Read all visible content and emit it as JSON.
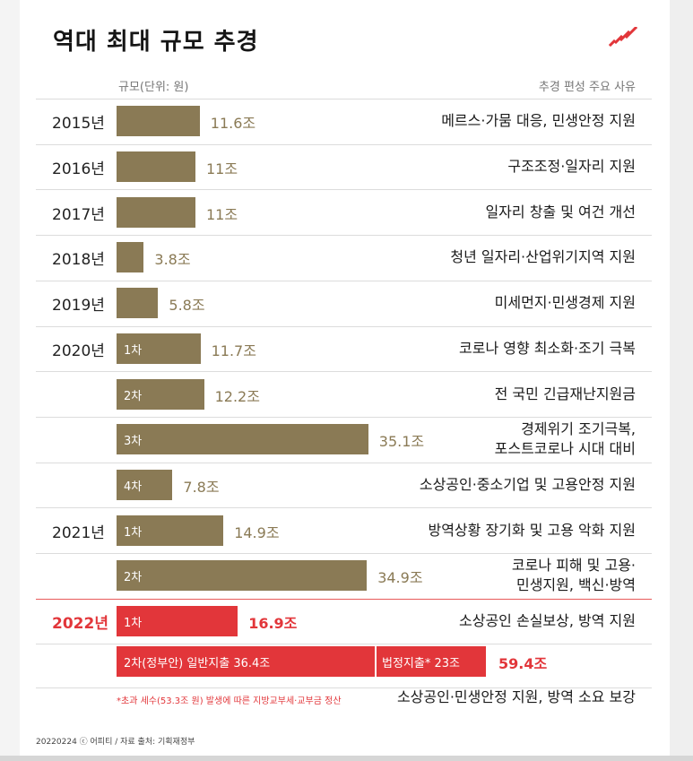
{
  "title": "역대 최대 규모 추경",
  "header": {
    "left": "규모(단위: 원)",
    "right": "추경 편성 주요 사유"
  },
  "logo_icon": "stripe-logo-icon",
  "colors": {
    "bar": "#8a7a55",
    "highlight": "#e2363a"
  },
  "chart_data": {
    "type": "bar",
    "orientation": "horizontal",
    "unit": "조",
    "rows": [
      {
        "year": "2015년",
        "round": "",
        "value": 11.6,
        "value_label": "11.6조",
        "reason": [
          "메르스·가뭄 대응, 민생안정 지원"
        ]
      },
      {
        "year": "2016년",
        "round": "",
        "value": 11,
        "value_label": "11조",
        "reason": [
          "구조조정·일자리 지원"
        ]
      },
      {
        "year": "2017년",
        "round": "",
        "value": 11,
        "value_label": "11조",
        "reason": [
          "일자리 창출 및 여건 개선"
        ]
      },
      {
        "year": "2018년",
        "round": "",
        "value": 3.8,
        "value_label": "3.8조",
        "reason": [
          "청년 일자리·산업위기지역 지원"
        ]
      },
      {
        "year": "2019년",
        "round": "",
        "value": 5.8,
        "value_label": "5.8조",
        "reason": [
          "미세먼지·민생경제 지원"
        ]
      },
      {
        "year": "2020년",
        "round": "1차",
        "value": 11.7,
        "value_label": "11.7조",
        "reason": [
          "코로나 영향 최소화·조기 극복"
        ]
      },
      {
        "year": "",
        "round": "2차",
        "value": 12.2,
        "value_label": "12.2조",
        "reason": [
          "전 국민 긴급재난지원금"
        ]
      },
      {
        "year": "",
        "round": "3차",
        "value": 35.1,
        "value_label": "35.1조",
        "reason": [
          "경제위기 조기극복,",
          "포스트코로나 시대 대비"
        ]
      },
      {
        "year": "",
        "round": "4차",
        "value": 7.8,
        "value_label": "7.8조",
        "reason": [
          "소상공인·중소기업 및 고용안정 지원"
        ]
      },
      {
        "year": "2021년",
        "round": "1차",
        "value": 14.9,
        "value_label": "14.9조",
        "reason": [
          "방역상황 장기화 및 고용 악화 지원"
        ]
      },
      {
        "year": "",
        "round": "2차",
        "value": 34.9,
        "value_label": "34.9조",
        "reason": [
          "코로나 피해 및 고용·",
          "민생지원, 백신·방역"
        ]
      },
      {
        "year": "2022년",
        "round": "1차",
        "value": 16.9,
        "value_label": "16.9조",
        "reason": [
          "소상공인 손실보상, 방역 지원"
        ],
        "highlight": true
      }
    ],
    "stacked_row": {
      "year": "",
      "segments": [
        {
          "label": "2차(정부안)  일반지출 36.4조",
          "value": 36.4
        },
        {
          "label": "법정지출* 23조",
          "value": 23
        }
      ],
      "total": 59.4,
      "total_label": "59.4조",
      "reason": [
        "소상공인·민생안정 지원, 방역 소요 보강"
      ],
      "note": "*초과 세수(53.3조 원) 발생에 따른 지방교부세·교부금 정산"
    }
  },
  "source": "20220224 ⓒ 어피티 / 자료 출처: 기획재정부"
}
